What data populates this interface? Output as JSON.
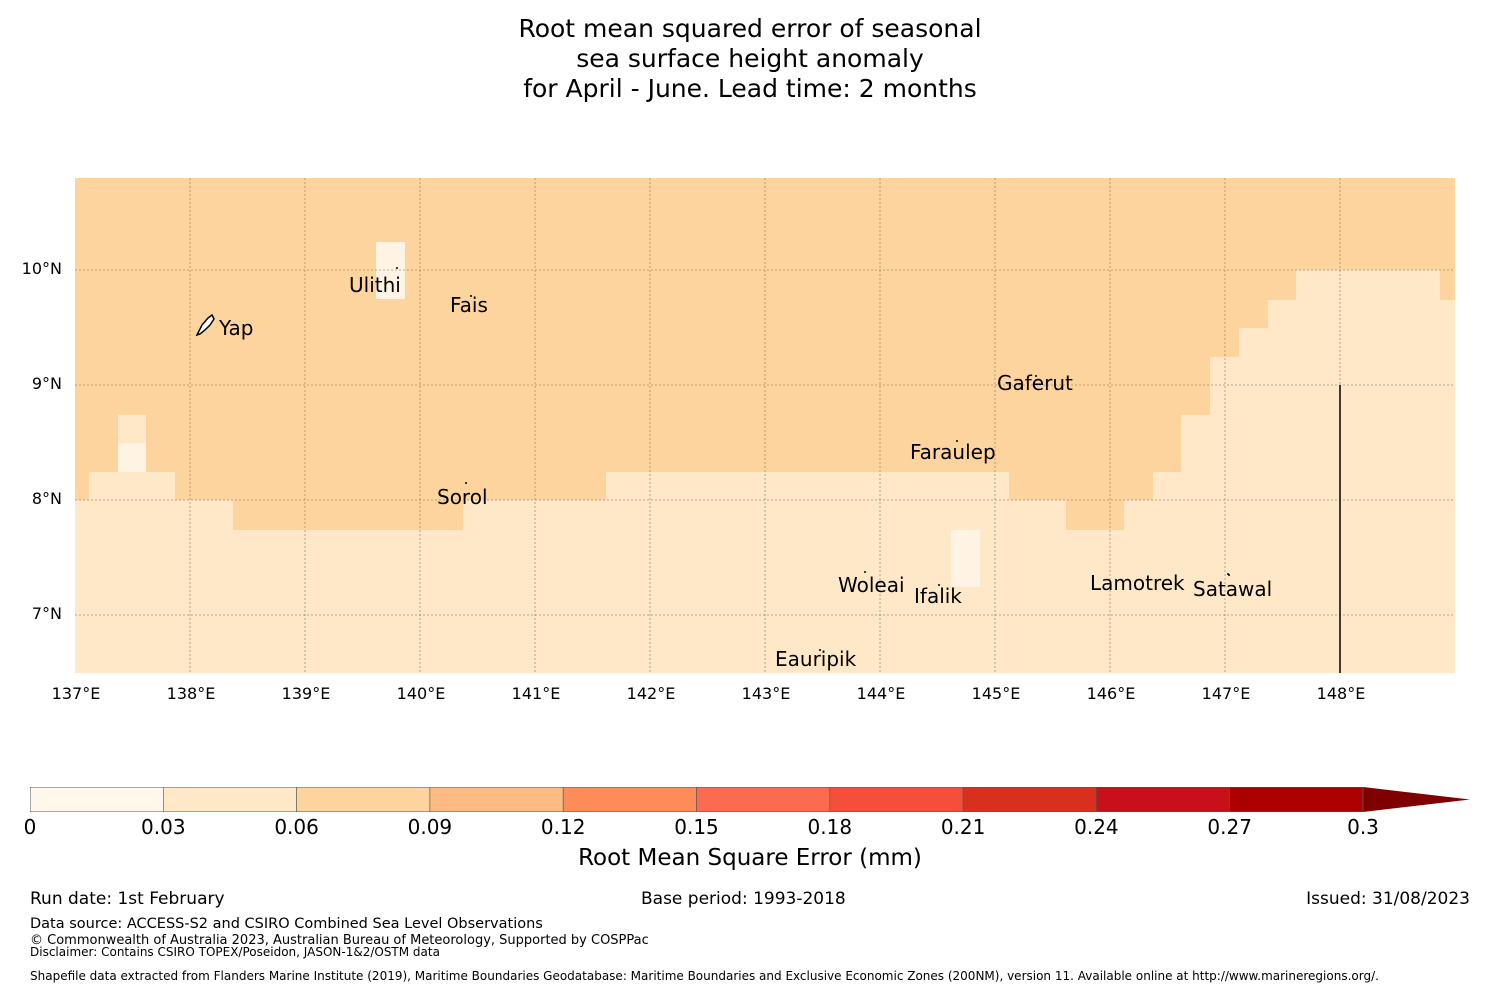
{
  "title": "Root mean squared error of seasonal\nsea surface height anomaly\n for April - June. Lead time: 2 months",
  "map": {
    "lat_range": [
      6.5,
      10.8
    ],
    "lon_range": [
      137.0,
      149.0
    ],
    "lat_ticks": [
      "10°N",
      "9°N",
      "8°N",
      "7°N"
    ],
    "lon_ticks": [
      "137°E",
      "138°E",
      "139°E",
      "140°E",
      "141°E",
      "142°E",
      "143°E",
      "144°E",
      "145°E",
      "146°E",
      "147°E",
      "148°E"
    ],
    "places": [
      {
        "name": "Yap",
        "lon": 138.25,
        "lat": 9.52
      },
      {
        "name": "Ulithi",
        "lon": 139.75,
        "lat": 9.85
      },
      {
        "name": "Fais",
        "lon": 140.45,
        "lat": 9.68
      },
      {
        "name": "Gaferut",
        "lon": 145.35,
        "lat": 8.98
      },
      {
        "name": "Faraulep",
        "lon": 144.5,
        "lat": 8.38
      },
      {
        "name": "Sorol",
        "lon": 140.38,
        "lat": 7.99
      },
      {
        "name": "Woleai",
        "lon": 143.9,
        "lat": 7.25
      },
      {
        "name": "Ifalik",
        "lon": 144.5,
        "lat": 7.16
      },
      {
        "name": "Lamotrek",
        "lon": 146.25,
        "lat": 7.27
      },
      {
        "name": "Satawal",
        "lon": 147.05,
        "lat": 7.23
      },
      {
        "name": "Eauripik",
        "lon": 143.45,
        "lat": 6.64
      }
    ],
    "colors": {
      "low": "#fee8c8",
      "mid": "#fdd49e",
      "lowest": "#fff3e3"
    }
  },
  "colorbar": {
    "boundaries": [
      "0",
      "0.03",
      "0.06",
      "0.09",
      "0.12",
      "0.15",
      "0.18",
      "0.21",
      "0.24",
      "0.27",
      "0.3"
    ],
    "colors": [
      "#fff7ec",
      "#fee8c8",
      "#fdd49e",
      "#fdbb84",
      "#fc8d59",
      "#fc6a4f",
      "#f64d3c",
      "#d7301f",
      "#c8101a",
      "#aa0000",
      "#7f0000"
    ],
    "label": "Root Mean Square Error (mm)"
  },
  "footer": {
    "run_date": "Run date: 1st February",
    "base_period": "Base period: 1993-2018",
    "issued": "Issued: 31/08/2023",
    "data_source": "Data source: ACCESS-S2 and CSIRO Combined Sea Level Observations",
    "copyright": "© Commonwealth of Australia 2023, Australian Bureau of Meteorology, Supported by COSPPac",
    "disclaimer": "Disclaimer: Contains CSIRO TOPEX/Poseidon, JASON-1&2/OSTM data",
    "shapefile": "Shapefile data extracted from Flanders Marine Institute (2019), Maritime Boundaries Geodatabase: Maritime Boundaries and Exclusive Economic Zones (200NM), version 11. Available online at http://www.marineregions.org/."
  }
}
